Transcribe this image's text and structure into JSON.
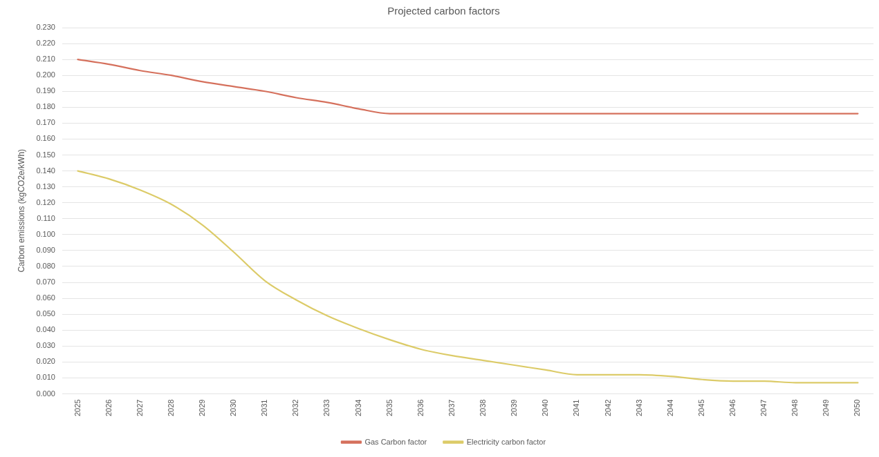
{
  "chart_data": {
    "type": "line",
    "title": "Projected carbon factors",
    "ylabel": "Carbon emissions (kgCO2e/kWh)",
    "categories": [
      "2025",
      "2026",
      "2027",
      "2028",
      "2029",
      "2030",
      "2031",
      "2032",
      "2033",
      "2034",
      "2035",
      "2036",
      "2037",
      "2038",
      "2039",
      "2040",
      "2041",
      "2042",
      "2043",
      "2044",
      "2045",
      "2046",
      "2047",
      "2048",
      "2049",
      "2050"
    ],
    "series": [
      {
        "name": "Gas Carbon factor",
        "color": "#d5705c",
        "values": [
          0.21,
          0.207,
          0.203,
          0.2,
          0.196,
          0.193,
          0.19,
          0.186,
          0.183,
          0.179,
          0.176,
          0.176,
          0.176,
          0.176,
          0.176,
          0.176,
          0.176,
          0.176,
          0.176,
          0.176,
          0.176,
          0.176,
          0.176,
          0.176,
          0.176,
          0.176
        ]
      },
      {
        "name": "Electricity carbon factor",
        "color": "#dccb68",
        "values": [
          0.14,
          0.135,
          0.128,
          0.119,
          0.106,
          0.089,
          0.071,
          0.059,
          0.049,
          0.041,
          0.034,
          0.028,
          0.024,
          0.021,
          0.018,
          0.015,
          0.012,
          0.012,
          0.012,
          0.011,
          0.009,
          0.008,
          0.008,
          0.007,
          0.007,
          0.007
        ]
      }
    ],
    "ylim": [
      0,
      0.23
    ],
    "yticks": [
      {
        "value": 0,
        "label": "0.000"
      },
      {
        "value": 0.01,
        "label": "0.010"
      },
      {
        "value": 0.02,
        "label": "0.020"
      },
      {
        "value": 0.03,
        "label": "0.030"
      },
      {
        "value": 0.04,
        "label": "0.040"
      },
      {
        "value": 0.05,
        "label": "0.050"
      },
      {
        "value": 0.06,
        "label": "0.060"
      },
      {
        "value": 0.07,
        "label": "0.070"
      },
      {
        "value": 0.08,
        "label": "0.080"
      },
      {
        "value": 0.09,
        "label": "0.090"
      },
      {
        "value": 0.1,
        "label": "0.100"
      },
      {
        "value": 0.11,
        "label": "0.110"
      },
      {
        "value": 0.12,
        "label": "0.120"
      },
      {
        "value": 0.13,
        "label": "0.130"
      },
      {
        "value": 0.14,
        "label": "0.140"
      },
      {
        "value": 0.15,
        "label": "0.150"
      },
      {
        "value": 0.16,
        "label": "0.160"
      },
      {
        "value": 0.17,
        "label": "0.170"
      },
      {
        "value": 0.18,
        "label": "0.180"
      },
      {
        "value": 0.19,
        "label": "0.190"
      },
      {
        "value": 0.2,
        "label": "0.200"
      },
      {
        "value": 0.21,
        "label": "0.210"
      },
      {
        "value": 0.22,
        "label": "0.220"
      },
      {
        "value": 0.23,
        "label": "0.230"
      }
    ],
    "grid": "y",
    "legend": "bottom",
    "marker": "none",
    "line_style": "solid"
  }
}
